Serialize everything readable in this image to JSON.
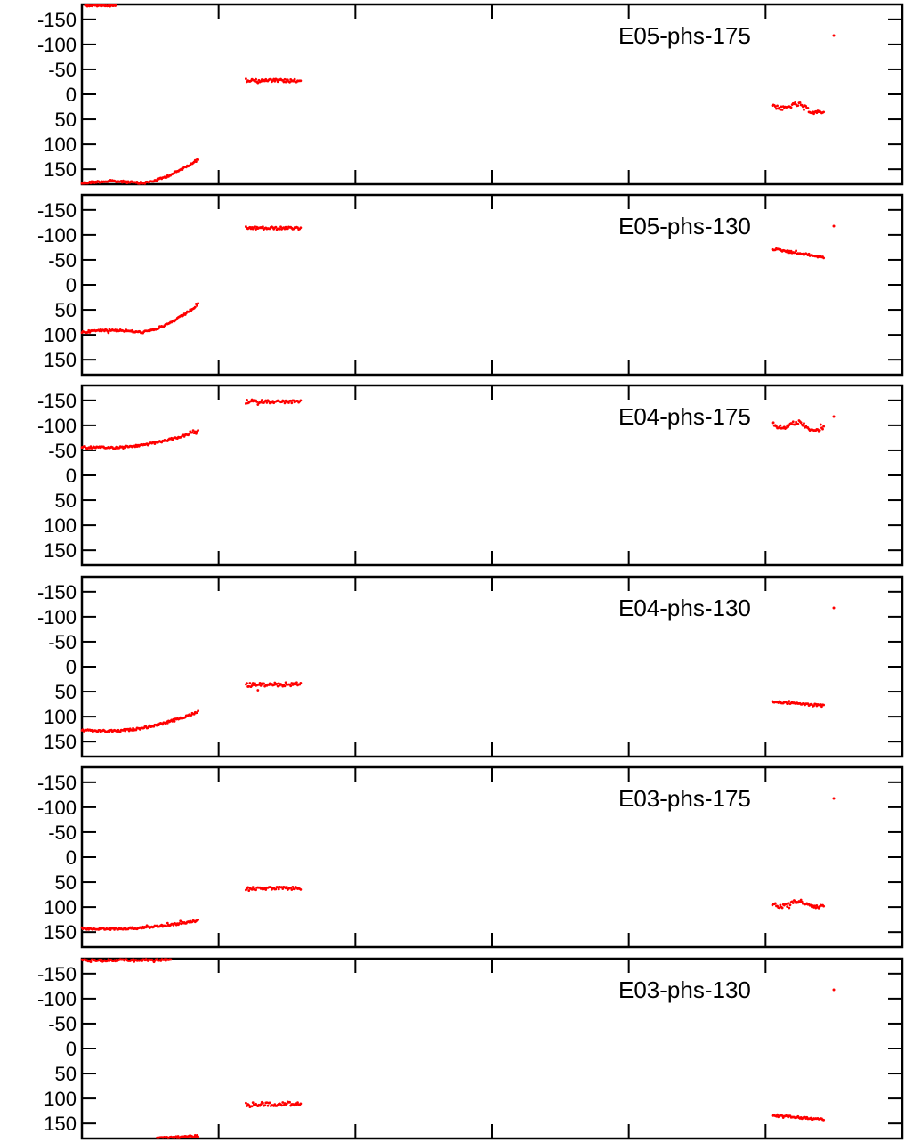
{
  "chart_data": {
    "type": "scatter",
    "layout": "stacked-panels",
    "point_color": "#ff0000",
    "yaxis": {
      "inverted": true,
      "ylim": [
        -180,
        180
      ],
      "ticks": [
        -150,
        -100,
        -50,
        0,
        50,
        100,
        150
      ],
      "tick_labels": [
        "-150",
        "-100",
        "-50",
        "0",
        "50",
        "100",
        "150"
      ]
    },
    "xaxis": {
      "ticks": [
        2,
        4,
        6,
        8,
        10
      ],
      "tick_labels": [],
      "xlim": [
        0,
        12
      ]
    },
    "legend_placement": "top-right",
    "panels": [
      {
        "legend": "E05-phs-175",
        "segments": [
          {
            "x_start": 0.0,
            "x_end": 1.7,
            "y_start": 178,
            "y_end": 130,
            "shape": "rise-late",
            "noise": 2
          },
          {
            "x_start": 0.05,
            "x_end": 0.5,
            "y_start": -178,
            "y_end": -178,
            "shape": "linear",
            "noise": 2,
            "clip_top": true
          },
          {
            "x_start": 2.4,
            "x_end": 3.2,
            "y_start": -28,
            "y_end": -27,
            "shape": "flat",
            "noise": 3
          },
          {
            "x_start": 10.1,
            "x_end": 10.85,
            "y_start": 20,
            "y_end": 33,
            "shape": "wiggle",
            "noise": 4
          }
        ]
      },
      {
        "legend": "E05-phs-130",
        "segments": [
          {
            "x_start": 0.0,
            "x_end": 1.7,
            "y_start": 95,
            "y_end": 40,
            "shape": "rise-late",
            "noise": 2
          },
          {
            "x_start": 2.4,
            "x_end": 3.2,
            "y_start": -114,
            "y_end": -113,
            "shape": "flat",
            "noise": 3
          },
          {
            "x_start": 10.1,
            "x_end": 10.85,
            "y_start": -72,
            "y_end": -55,
            "shape": "linear",
            "noise": 2
          }
        ]
      },
      {
        "legend": "E04-phs-175",
        "segments": [
          {
            "x_start": 0.0,
            "x_end": 1.7,
            "y_start": -57,
            "y_end": -88,
            "shape": "dip-rise",
            "noise": 2
          },
          {
            "x_start": 2.4,
            "x_end": 3.2,
            "y_start": -148,
            "y_end": -147,
            "shape": "flat",
            "noise": 3
          },
          {
            "x_start": 10.1,
            "x_end": 10.85,
            "y_start": -103,
            "y_end": -95,
            "shape": "wiggle",
            "noise": 4
          }
        ]
      },
      {
        "legend": "E04-phs-130",
        "segments": [
          {
            "x_start": 0.0,
            "x_end": 1.7,
            "y_start": 127,
            "y_end": 90,
            "shape": "dip-rise",
            "noise": 2
          },
          {
            "x_start": 2.4,
            "x_end": 3.2,
            "y_start": 37,
            "y_end": 35,
            "shape": "flat",
            "noise": 4
          },
          {
            "x_start": 10.1,
            "x_end": 10.85,
            "y_start": 70,
            "y_end": 78,
            "shape": "linear",
            "noise": 2
          }
        ]
      },
      {
        "legend": "E03-phs-175",
        "segments": [
          {
            "x_start": 0.0,
            "x_end": 1.7,
            "y_start": 143,
            "y_end": 127,
            "shape": "dip-rise",
            "noise": 2
          },
          {
            "x_start": 2.4,
            "x_end": 3.2,
            "y_start": 63,
            "y_end": 62,
            "shape": "flat",
            "noise": 3
          },
          {
            "x_start": 10.1,
            "x_end": 10.85,
            "y_start": 93,
            "y_end": 95,
            "shape": "wiggle",
            "noise": 4
          }
        ]
      },
      {
        "legend": "E03-phs-130",
        "segments": [
          {
            "x_start": 0.0,
            "x_end": 1.3,
            "y_start": -177,
            "y_end": -178,
            "shape": "dip-rise",
            "noise": 2,
            "clip_top": true
          },
          {
            "x_start": 1.1,
            "x_end": 1.7,
            "y_start": 180,
            "y_end": 175,
            "shape": "linear",
            "noise": 2,
            "clip_bottom": true
          },
          {
            "x_start": 2.4,
            "x_end": 3.2,
            "y_start": 112,
            "y_end": 110,
            "shape": "flat",
            "noise": 4
          },
          {
            "x_start": 10.1,
            "x_end": 10.85,
            "y_start": 134,
            "y_end": 142,
            "shape": "linear",
            "noise": 2
          }
        ]
      }
    ]
  }
}
